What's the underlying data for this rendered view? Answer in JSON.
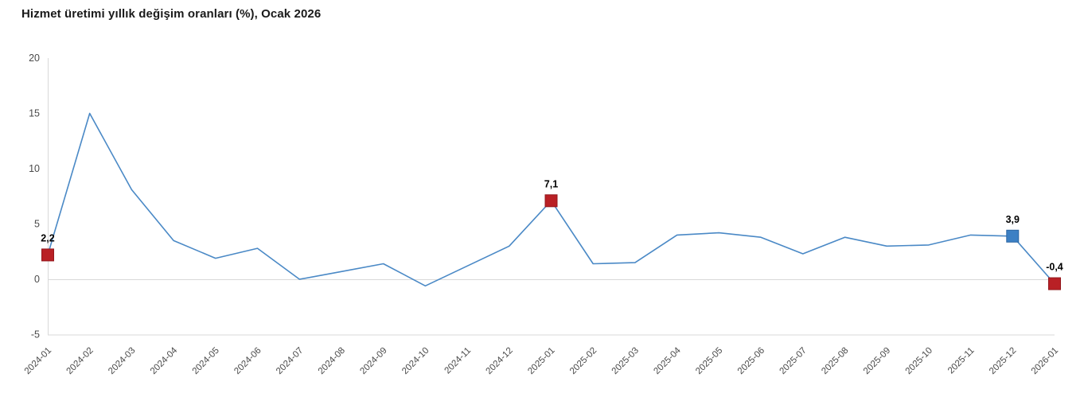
{
  "title": "Hizmet üretimi yıllık değişim oranları (%), Ocak 2026",
  "chart_data": {
    "type": "line",
    "title": "Hizmet üretimi yıllık değişim oranları (%), Ocak 2026",
    "x": [
      "2024-01",
      "2024-02",
      "2024-03",
      "2024-04",
      "2024-05",
      "2024-06",
      "2024-07",
      "2024-08",
      "2024-09",
      "2024-10",
      "2024-11",
      "2024-12",
      "2025-01",
      "2025-02",
      "2025-03",
      "2025-04",
      "2025-05",
      "2025-06",
      "2025-07",
      "2025-08",
      "2025-09",
      "2025-10",
      "2025-11",
      "2025-12",
      "2026-01"
    ],
    "values": [
      2.2,
      15,
      8.1,
      3.5,
      1.9,
      2.8,
      0,
      0.7,
      1.4,
      -0.6,
      1.2,
      3,
      7.1,
      1.4,
      1.5,
      4,
      4.2,
      3.8,
      2.3,
      3.8,
      3,
      3.1,
      4,
      3.9,
      -0.4
    ],
    "ylim": [
      -5,
      20
    ],
    "yticks": [
      20,
      15,
      10,
      5,
      0,
      -5
    ],
    "grid": "zero-line-only",
    "legend_position": "none",
    "xlabel": "",
    "ylabel": "",
    "colors": {
      "line": "#4a89c6",
      "axis": "#d9d9d9",
      "tick_label": "#4a4a4a",
      "data_label": "#000000",
      "marker_red": "#b92025",
      "marker_red_stroke": "#93181d",
      "marker_blue": "#3c80c4",
      "marker_blue_stroke": "#2b66a3"
    },
    "markers": [
      {
        "index": 0,
        "label": "2,2",
        "fill": "#b92025",
        "stroke": "#93181d"
      },
      {
        "index": 12,
        "label": "7,1",
        "fill": "#b92025",
        "stroke": "#93181d"
      },
      {
        "index": 23,
        "label": "3,9",
        "fill": "#3c80c4",
        "stroke": "#2b66a3"
      },
      {
        "index": 24,
        "label": "-0,4",
        "fill": "#b92025",
        "stroke": "#93181d"
      }
    ]
  }
}
